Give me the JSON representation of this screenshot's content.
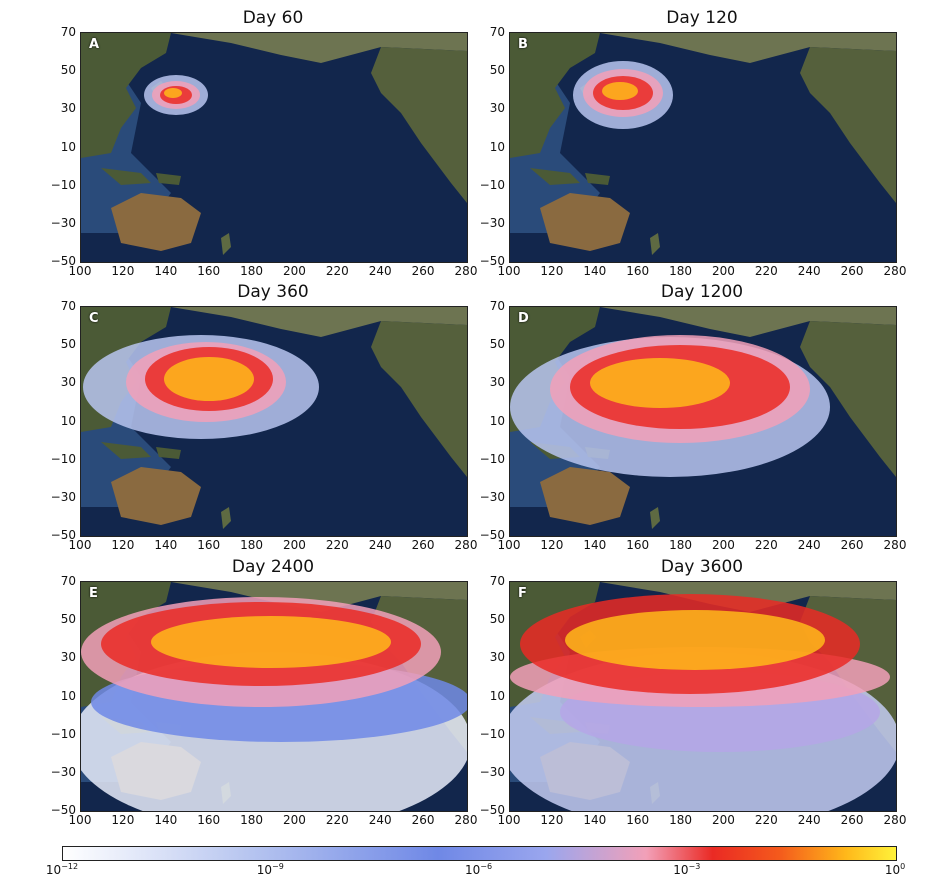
{
  "panels": [
    {
      "letter": "A",
      "title": "Day 60"
    },
    {
      "letter": "B",
      "title": "Day 120"
    },
    {
      "letter": "C",
      "title": "Day 360"
    },
    {
      "letter": "D",
      "title": "Day 1200"
    },
    {
      "letter": "E",
      "title": "Day 2400"
    },
    {
      "letter": "F",
      "title": "Day 3600"
    }
  ],
  "axes": {
    "lat_ticks": [
      "70",
      "50",
      "30",
      "10",
      "−10",
      "−30",
      "−50"
    ],
    "lon_ticks": [
      "100",
      "120",
      "140",
      "160",
      "180",
      "200",
      "220",
      "240",
      "260",
      "280"
    ]
  },
  "colorbar": {
    "base": "10",
    "exponents": [
      "−12",
      "−9",
      "−6",
      "−3",
      "0"
    ],
    "colors": [
      "#ffffff",
      "#6f88e6",
      "#ea2a24",
      "#fff23a"
    ]
  }
}
